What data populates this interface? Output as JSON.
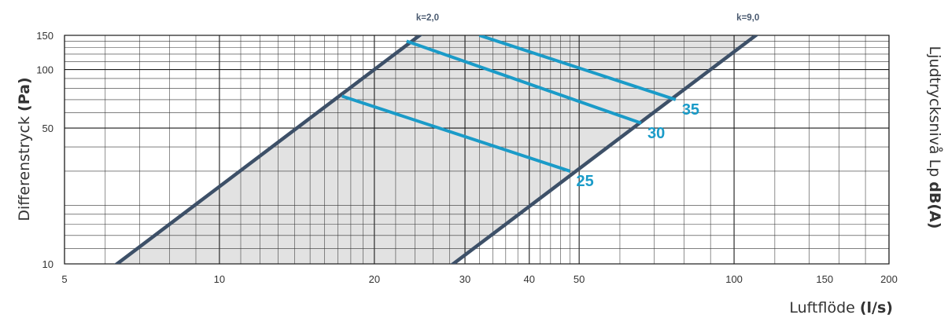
{
  "chart_data": {
    "type": "line",
    "xscale": "log",
    "yscale": "log",
    "xlim": [
      5,
      200
    ],
    "ylim": [
      10,
      150
    ],
    "x_ticks": [
      5,
      10,
      20,
      30,
      40,
      50,
      100,
      150,
      200
    ],
    "y_ticks": [
      10,
      50,
      100,
      150
    ],
    "xlabel": {
      "text": "Luftflöde ",
      "bold": "(l/s)"
    },
    "ylabel": {
      "text": "Differenstryck ",
      "bold": "(Pa)"
    },
    "y2label": {
      "text": "Ljudtrycksnivå Lp ",
      "bold": "dB(A)"
    },
    "grid": true,
    "k_lines": [
      {
        "name": "k=2,0",
        "k": 2.0,
        "color": "#3d5068"
      },
      {
        "name": "k=9,0",
        "k": 9.0,
        "color": "#3d5068"
      }
    ],
    "shaded_region_color": "#e2e2e2",
    "sound_lines": [
      {
        "name": "25",
        "points": [
          [
            17.3,
            73
          ],
          [
            48,
            30
          ]
        ]
      },
      {
        "name": "30",
        "points": [
          [
            23.1,
            140
          ],
          [
            66,
            53
          ]
        ]
      },
      {
        "name": "35",
        "points": [
          [
            32,
            150
          ],
          [
            77,
            70
          ]
        ]
      }
    ],
    "sound_line_color": "#1a9bc8"
  }
}
